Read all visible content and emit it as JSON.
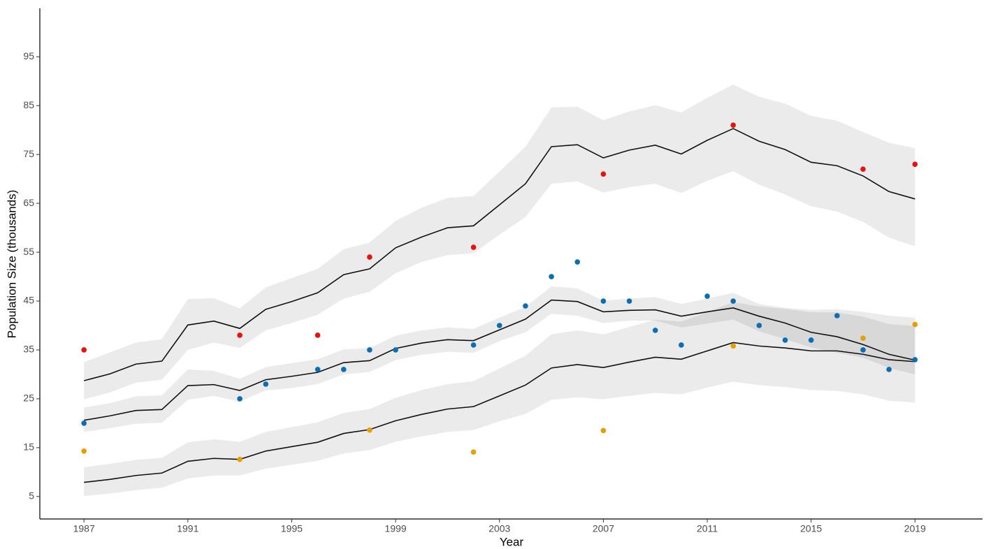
{
  "chart_data": {
    "type": "line",
    "x_label": "Year",
    "y_label": "Population Size (thousands)",
    "x": [
      1987,
      1988,
      1989,
      1990,
      1991,
      1992,
      1993,
      1994,
      1995,
      1996,
      1997,
      1998,
      1999,
      2000,
      2001,
      2002,
      2003,
      2004,
      2005,
      2006,
      2007,
      2008,
      2009,
      2010,
      2011,
      2012,
      2013,
      2014,
      2015,
      2016,
      2017,
      2018,
      2019
    ],
    "xlim": [
      1985.3,
      2021.6
    ],
    "ylim": [
      0.4,
      104.9
    ],
    "xticks": [
      1987,
      1991,
      1995,
      1999,
      2003,
      2007,
      2011,
      2015,
      2019
    ],
    "yticks": [
      5,
      15,
      25,
      35,
      45,
      55,
      65,
      75,
      85,
      95
    ],
    "band_color": "rgba(0,0,0,0.08)",
    "line_color": "#111111",
    "series": [
      {
        "values": [
          28.7,
          30.1,
          32.1,
          32.7,
          40.1,
          40.9,
          39.4,
          43.3,
          44.9,
          46.7,
          50.4,
          51.6,
          55.9,
          58.1,
          60,
          60.4,
          64.7,
          69,
          76.6,
          77,
          74.3,
          75.9,
          76.9,
          75.1,
          77.9,
          80.3,
          77.7,
          76,
          73.4,
          72.7,
          70.6,
          67.4,
          65.9
        ],
        "upper": [
          32.5,
          34.5,
          36.5,
          37.2,
          45.4,
          45.6,
          43.5,
          47.8,
          49.7,
          51.6,
          55.6,
          57,
          61.4,
          64.1,
          66.1,
          66.5,
          71.5,
          76.6,
          84.6,
          84.8,
          82,
          83.8,
          85.1,
          83.6,
          86.6,
          89.3,
          86.8,
          85.4,
          82.9,
          81.9,
          79.6,
          77.4,
          76.3
        ],
        "lower": [
          24.9,
          26.3,
          28.3,
          28.9,
          35,
          36.5,
          35.4,
          39,
          40.5,
          42.2,
          45.5,
          46.9,
          50.7,
          53,
          54.4,
          54.8,
          58.6,
          62.2,
          69,
          69.5,
          67.2,
          68.3,
          69,
          67.1,
          69.6,
          71.6,
          68.8,
          66.8,
          64.4,
          63.3,
          61.2,
          58,
          56.2
        ]
      },
      {
        "values": [
          20.6,
          21.5,
          22.6,
          22.8,
          27.7,
          27.9,
          26.7,
          28.9,
          29.6,
          30.4,
          32.4,
          32.8,
          35.3,
          36.4,
          37.1,
          36.9,
          39.1,
          41.3,
          45.2,
          44.9,
          42.8,
          43.1,
          43.2,
          41.9,
          42.8,
          43.6,
          41.9,
          40.5,
          38.6,
          37.7,
          36.1,
          34.1,
          32.9
        ],
        "upper": [
          23.2,
          24.1,
          25.5,
          25.7,
          31,
          30.7,
          29.1,
          31.5,
          32.3,
          33.1,
          35.1,
          35.4,
          37.9,
          39,
          39.6,
          39.3,
          41.6,
          43.8,
          48,
          47.6,
          45.1,
          45.5,
          45.8,
          44.4,
          45.5,
          46.7,
          44.4,
          43.6,
          43.2,
          43.3,
          42.8,
          42,
          41.6
        ],
        "lower": [
          18.2,
          19,
          19.9,
          20.1,
          24.8,
          25.6,
          24.4,
          26.7,
          27.2,
          28,
          30,
          30.5,
          32.9,
          34,
          34.6,
          34.4,
          36.8,
          38.6,
          42.4,
          42,
          40.5,
          41,
          41,
          39.6,
          40.4,
          41.2,
          38.8,
          37.2,
          35.5,
          34.4,
          33.4,
          31.3,
          30
        ]
      },
      {
        "values": [
          7.9,
          8.5,
          9.3,
          9.8,
          12.2,
          12.8,
          12.6,
          14.3,
          15.2,
          16.1,
          17.9,
          18.7,
          20.5,
          21.8,
          22.9,
          23.4,
          25.6,
          27.8,
          31.3,
          32,
          31.4,
          32.5,
          33.5,
          33.1,
          34.8,
          36.5,
          35.8,
          35.4,
          34.8,
          34.8,
          34.1,
          33,
          32.6
        ],
        "upper": [
          11,
          11.7,
          12.5,
          12.9,
          16.1,
          16.7,
          16.2,
          18.2,
          19.2,
          20.2,
          22.1,
          22.9,
          25.2,
          26.8,
          28,
          28.6,
          31.2,
          33.8,
          38.2,
          39,
          38.2,
          39.7,
          41.2,
          40.8,
          42.7,
          44.8,
          43.9,
          43.4,
          42.7,
          42.7,
          41.8,
          40.3,
          39.9
        ],
        "lower": [
          5.1,
          5.6,
          6.3,
          6.8,
          8.7,
          9.3,
          9.3,
          10.7,
          11.5,
          12.3,
          13.8,
          14.5,
          16.2,
          17.3,
          18.2,
          18.6,
          20.4,
          21.9,
          24.8,
          25.3,
          24.9,
          25.6,
          26.2,
          25.9,
          27.3,
          28.5,
          27.8,
          27.4,
          26.8,
          26.6,
          25.9,
          24.6,
          24.2
        ]
      }
    ],
    "points": [
      {
        "color": "#e8120c",
        "x": [
          1987,
          1993,
          1996,
          1998,
          2002,
          2007,
          2012,
          2017,
          2019
        ],
        "values": [
          35,
          38,
          38,
          54,
          56,
          71,
          81,
          72,
          73
        ]
      },
      {
        "color": "#0a6eb4",
        "x": [
          1987,
          1993,
          1994,
          1996,
          1997,
          1998,
          1999,
          2002,
          2003,
          2004,
          2005,
          2006,
          2007,
          2008,
          2009,
          2010,
          2011,
          2012,
          2013,
          2014,
          2015,
          2016,
          2017,
          2018,
          2019
        ],
        "values": [
          20,
          25,
          28,
          31,
          31,
          35,
          35,
          36,
          40,
          44,
          50,
          53,
          45,
          45,
          39,
          36,
          46,
          45,
          40,
          37,
          37,
          42,
          35,
          31,
          33
        ]
      },
      {
        "color": "#e69f00",
        "x": [
          1987,
          1993,
          1998,
          2002,
          2007,
          2012,
          2017,
          2019
        ],
        "values": [
          14.3,
          12.6,
          18.6,
          14.1,
          18.5,
          35.8,
          37.4,
          40.2
        ]
      }
    ]
  }
}
